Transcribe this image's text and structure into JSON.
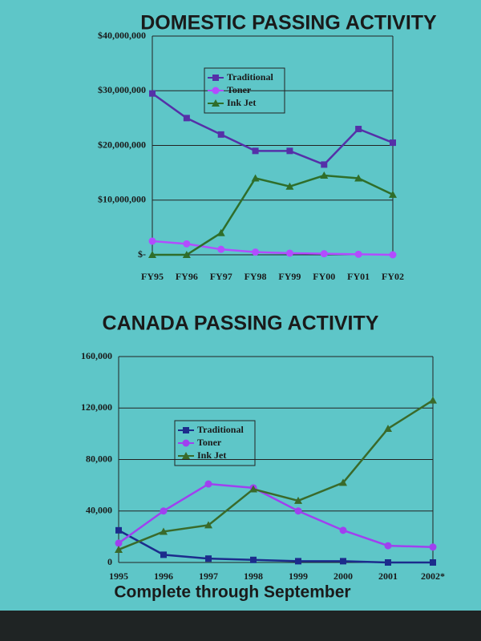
{
  "chart_data": [
    {
      "type": "line",
      "title": "DOMESTIC PASSING ACTIVITY",
      "categories": [
        "FY95",
        "FY96",
        "FY97",
        "FY98",
        "FY99",
        "FY00",
        "FY01",
        "FY02"
      ],
      "series": [
        {
          "name": "Traditional",
          "color": "#5530a8",
          "marker": "square",
          "values": [
            29500000,
            25000000,
            22000000,
            19000000,
            19000000,
            16500000,
            23000000,
            20500000
          ]
        },
        {
          "name": "Toner",
          "color": "#b24cff",
          "marker": "circle",
          "values": [
            2500000,
            2000000,
            1000000,
            500000,
            300000,
            200000,
            100000,
            0
          ]
        },
        {
          "name": "Ink Jet",
          "color": "#2f6e2a",
          "marker": "triangle",
          "values": [
            0,
            0,
            4000000,
            14000000,
            12500000,
            14500000,
            14000000,
            11000000
          ]
        }
      ],
      "ylim": [
        0,
        40000000
      ],
      "yticks": [
        {
          "value": 0,
          "label": "$-"
        },
        {
          "value": 10000000,
          "label": "$10,000,000"
        },
        {
          "value": 20000000,
          "label": "$20,000,000"
        },
        {
          "value": 30000000,
          "label": "$30,000,000"
        },
        {
          "value": 40000000,
          "label": "$40,000,000"
        }
      ],
      "grid": true,
      "legend_position": "top"
    },
    {
      "type": "line",
      "title": "CANADA PASSING ACTIVITY",
      "xlabel": "Complete through September",
      "categories": [
        "1995",
        "1996",
        "1997",
        "1998",
        "1999",
        "2000",
        "2001",
        "2002*"
      ],
      "series": [
        {
          "name": "Traditional",
          "color": "#1c2c8c",
          "marker": "square",
          "values": [
            25000,
            6000,
            3000,
            2000,
            1000,
            1000,
            0,
            0
          ]
        },
        {
          "name": "Toner",
          "color": "#a040f0",
          "marker": "circle",
          "values": [
            15000,
            40000,
            61000,
            58000,
            40000,
            25000,
            13000,
            12000
          ]
        },
        {
          "name": "Ink Jet",
          "color": "#3a6a2a",
          "marker": "triangle",
          "values": [
            10000,
            24000,
            29000,
            57000,
            48000,
            62000,
            104000,
            126000
          ]
        }
      ],
      "ylim": [
        0,
        160000
      ],
      "yticks": [
        0,
        {
          "value": 40000,
          "label": "40,000"
        },
        {
          "value": 80000,
          "label": "80,000"
        },
        {
          "value": 120000,
          "label": "120,000"
        },
        {
          "value": 160000,
          "label": "160,000"
        }
      ],
      "grid": true,
      "legend_position": "left"
    }
  ]
}
